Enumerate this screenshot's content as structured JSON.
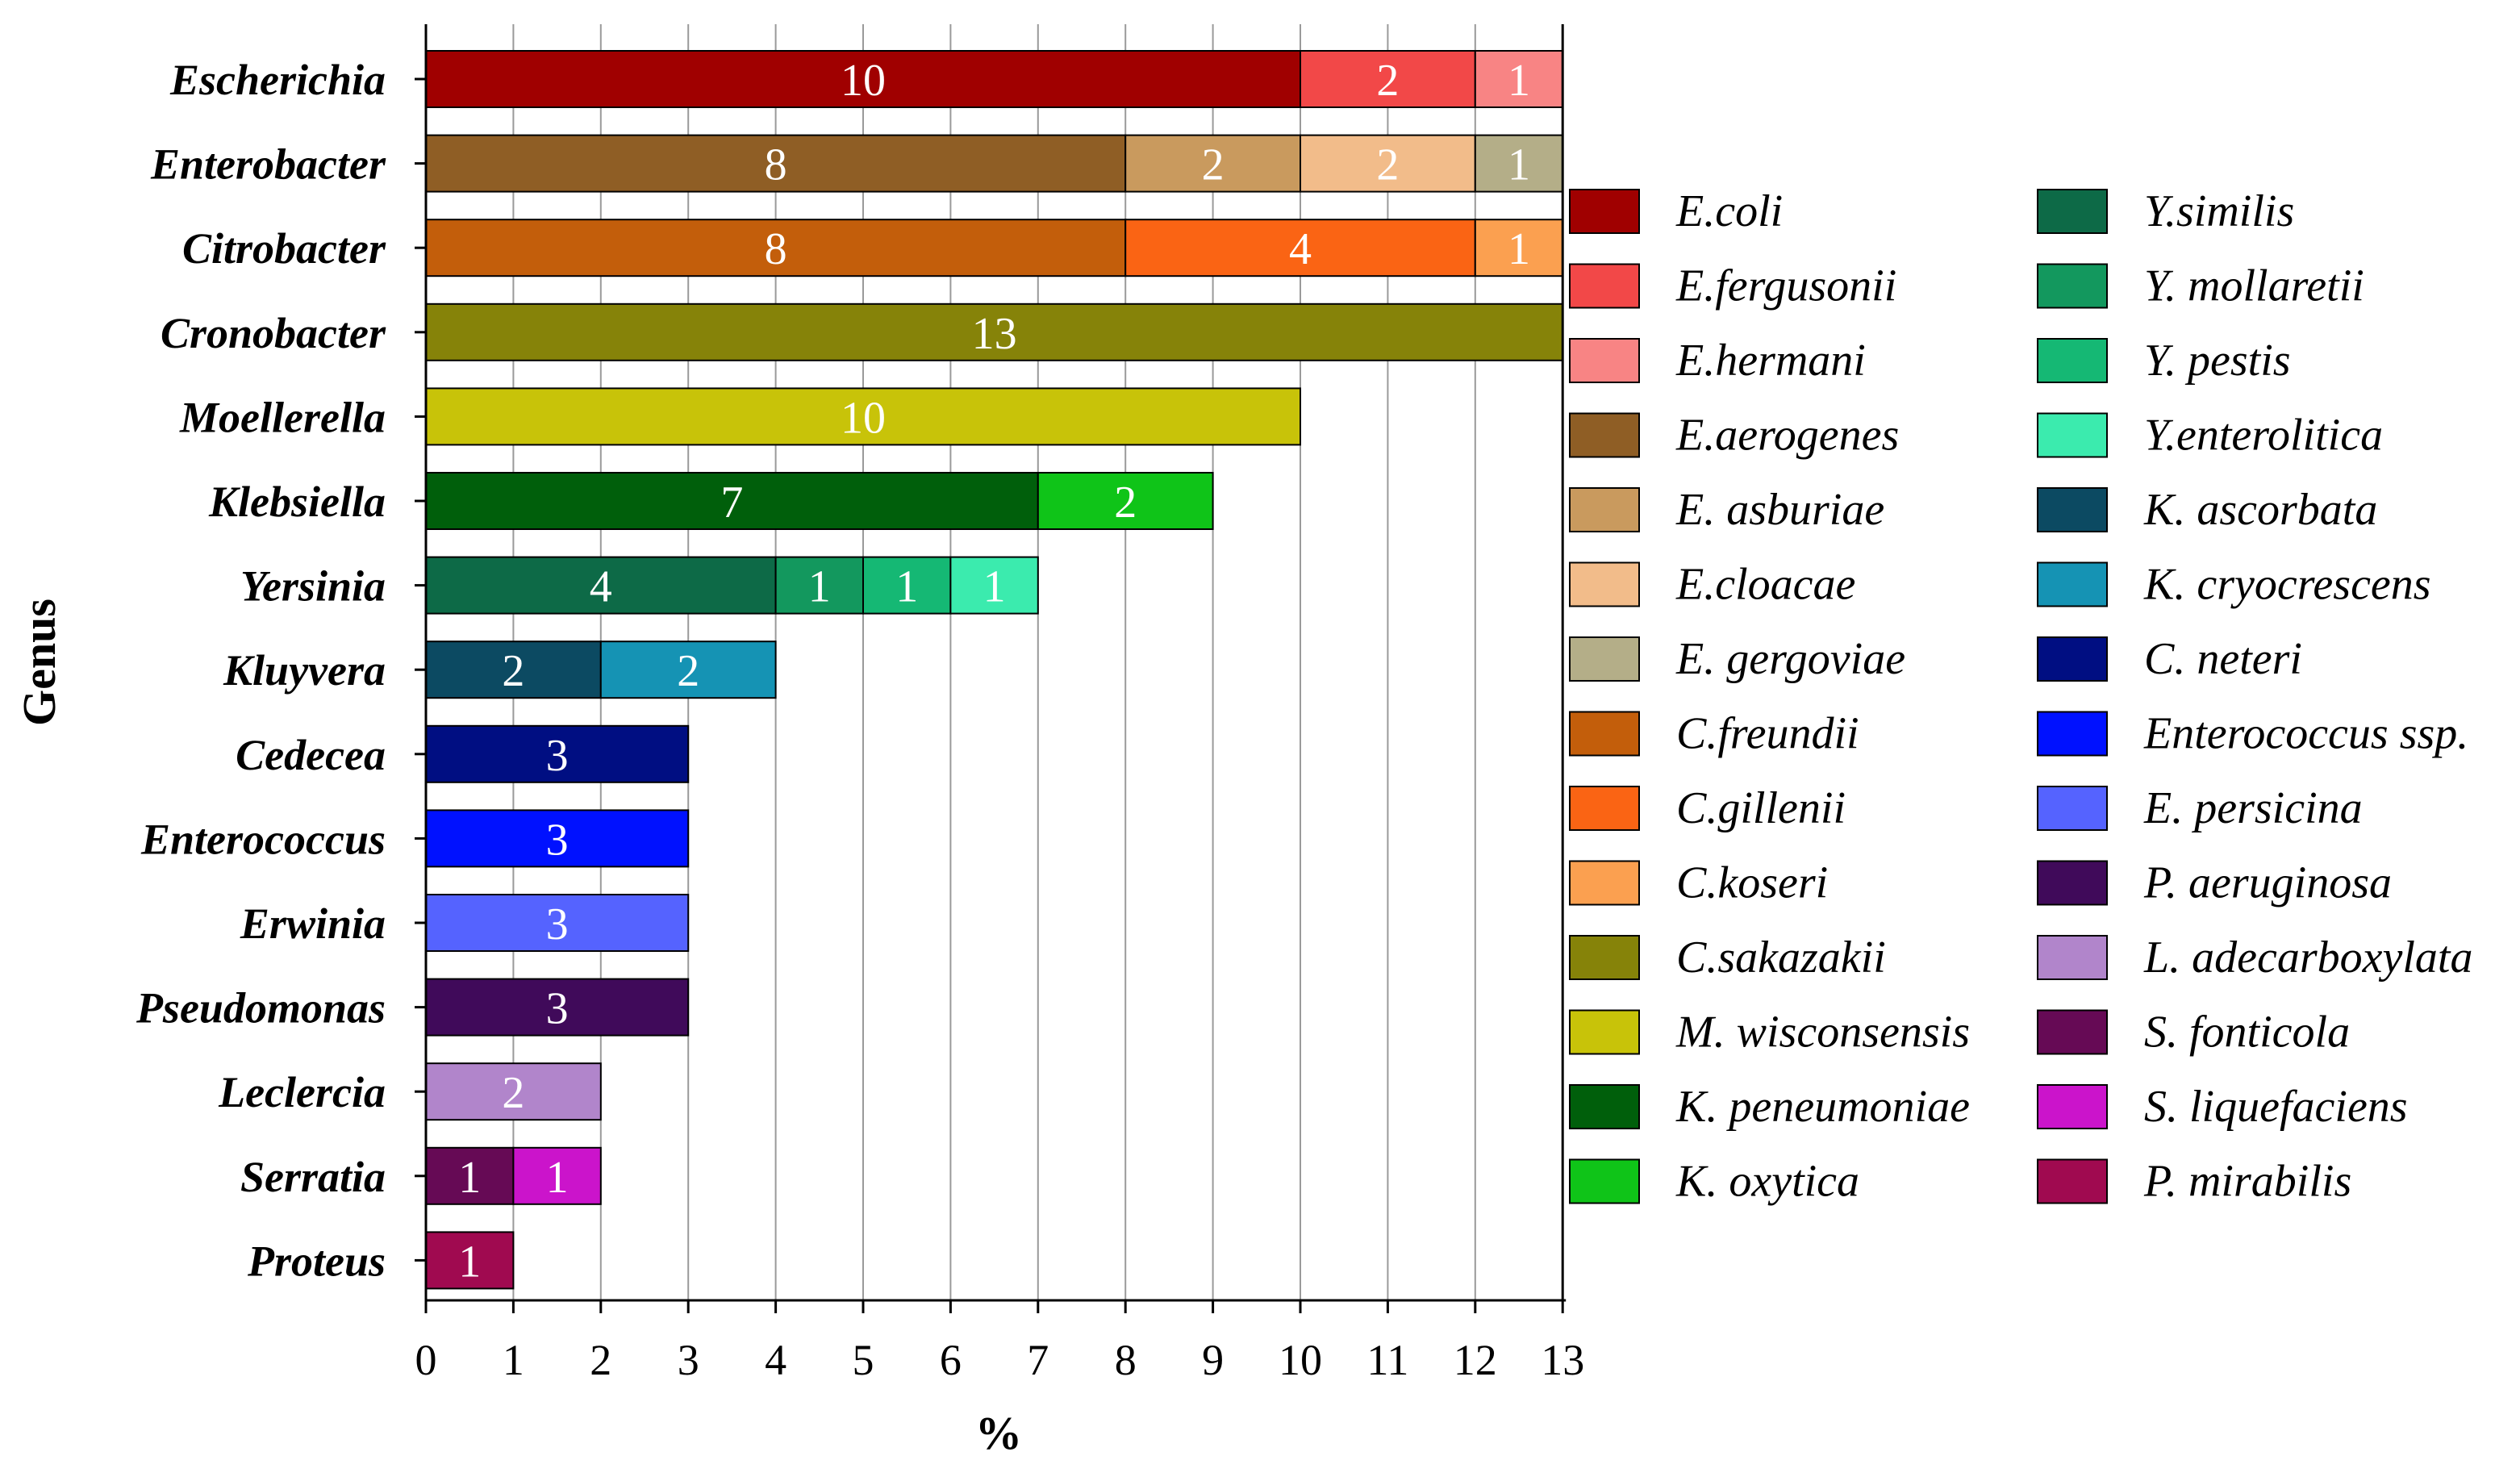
{
  "chart_data": {
    "type": "bar",
    "orientation": "horizontal",
    "stacked": true,
    "xlabel": "%",
    "ylabel": "Genus",
    "xlim": [
      0,
      13
    ],
    "xticks": [
      "0",
      "1",
      "2",
      "3",
      "4",
      "5",
      "6",
      "7",
      "8",
      "9",
      "10",
      "11",
      "12",
      "13"
    ],
    "grid": "vertical",
    "legend_position": "right",
    "legend": [
      {
        "name": "E.coli",
        "color": "#A00000"
      },
      {
        "name": "E.fergusonii",
        "color": "#F24848"
      },
      {
        "name": "E.hermani",
        "color": "#F88484"
      },
      {
        "name": "E.aerogenes",
        "color": "#8F5E25"
      },
      {
        "name": "E. asburiae",
        "color": "#C99A5E"
      },
      {
        "name": "E.cloacae",
        "color": "#F2BC8A"
      },
      {
        "name": "E. gergoviae",
        "color": "#B4AE88"
      },
      {
        "name": "C.freundii",
        "color": "#C35E0B"
      },
      {
        "name": "C.gillenii",
        "color": "#FA6414"
      },
      {
        "name": "C.koseri",
        "color": "#FBA050"
      },
      {
        "name": "C.sakazakii",
        "color": "#868309"
      },
      {
        "name": "M. wisconsensis",
        "color": "#C8C309"
      },
      {
        "name": "K. peneumoniae",
        "color": "#005F0B"
      },
      {
        "name": "K. oxytica",
        "color": "#0FC418"
      },
      {
        "name": "Y.similis",
        "color": "#0D6A47"
      },
      {
        "name": "Y. mollaretii",
        "color": "#13985E"
      },
      {
        "name": "Y. pestis",
        "color": "#15B874"
      },
      {
        "name": "Y.enterolitica",
        "color": "#3BEBAE"
      },
      {
        "name": "K. ascorbata",
        "color": "#0C4A62"
      },
      {
        "name": "K. cryocrescens",
        "color": "#1593B4"
      },
      {
        "name": "C. neteri",
        "color": "#000E82"
      },
      {
        "name": "Enterococcus ssp.",
        "color": "#0011FF"
      },
      {
        "name": "E. persicina",
        "color": "#5563FF"
      },
      {
        "name": "P. aeruginosa",
        "color": "#400A5A"
      },
      {
        "name": "L. adecarboxylata",
        "color": "#B185CB"
      },
      {
        "name": "S. fonticola",
        "color": "#660A55"
      },
      {
        "name": "S. liquefaciens",
        "color": "#CB14CB"
      },
      {
        "name": "P. mirabilis",
        "color": "#A00A50"
      }
    ],
    "bars": [
      {
        "genus": "Escherichia",
        "segments": [
          {
            "species": "E.coli",
            "value": 10,
            "label": "10"
          },
          {
            "species": "E.fergusonii",
            "value": 2,
            "label": "2"
          },
          {
            "species": "E.hermani",
            "value": 1,
            "label": "1"
          }
        ]
      },
      {
        "genus": "Enterobacter",
        "segments": [
          {
            "species": "E.aerogenes",
            "value": 8,
            "label": "8"
          },
          {
            "species": "E. asburiae",
            "value": 2,
            "label": "2"
          },
          {
            "species": "E.cloacae",
            "value": 2,
            "label": "2"
          },
          {
            "species": "E. gergoviae",
            "value": 1,
            "label": "1"
          }
        ]
      },
      {
        "genus": "Citrobacter",
        "segments": [
          {
            "species": "C.freundii",
            "value": 8,
            "label": "8"
          },
          {
            "species": "C.gillenii",
            "value": 4,
            "label": "4"
          },
          {
            "species": "C.koseri",
            "value": 1,
            "label": "1"
          }
        ]
      },
      {
        "genus": "Cronobacter",
        "segments": [
          {
            "species": "C.sakazakii",
            "value": 13,
            "label": "13"
          }
        ]
      },
      {
        "genus": "Moellerella",
        "segments": [
          {
            "species": "M. wisconsensis",
            "value": 10,
            "label": "10"
          }
        ]
      },
      {
        "genus": "Klebsiella",
        "segments": [
          {
            "species": "K. peneumoniae",
            "value": 7,
            "label": "7"
          },
          {
            "species": "K. oxytica",
            "value": 2,
            "label": "2"
          }
        ]
      },
      {
        "genus": "Yersinia",
        "segments": [
          {
            "species": "Y.similis",
            "value": 4,
            "label": "4"
          },
          {
            "species": "Y. mollaretii",
            "value": 1,
            "label": "1"
          },
          {
            "species": "Y. pestis",
            "value": 1,
            "label": "1"
          },
          {
            "species": "Y.enterolitica",
            "value": 1,
            "label": "1"
          }
        ]
      },
      {
        "genus": "Kluyvera",
        "segments": [
          {
            "species": "K. ascorbata",
            "value": 2,
            "label": "2"
          },
          {
            "species": "K. cryocrescens",
            "value": 2,
            "label": "2"
          }
        ]
      },
      {
        "genus": "Cedecea",
        "segments": [
          {
            "species": "C. neteri",
            "value": 3,
            "label": "3"
          }
        ]
      },
      {
        "genus": "Enterococcus",
        "segments": [
          {
            "species": "Enterococcus ssp.",
            "value": 3,
            "label": "3"
          }
        ]
      },
      {
        "genus": "Erwinia",
        "segments": [
          {
            "species": "E. persicina",
            "value": 3,
            "label": "3"
          }
        ]
      },
      {
        "genus": "Pseudomonas",
        "segments": [
          {
            "species": "P. aeruginosa",
            "value": 3,
            "label": "3"
          }
        ]
      },
      {
        "genus": "Leclercia",
        "segments": [
          {
            "species": "L. adecarboxylata",
            "value": 2,
            "label": "2"
          }
        ]
      },
      {
        "genus": "Serratia",
        "segments": [
          {
            "species": "S. fonticola",
            "value": 1,
            "label": "1"
          },
          {
            "species": "S. liquefaciens",
            "value": 1,
            "label": "1"
          }
        ]
      },
      {
        "genus": "Proteus",
        "segments": [
          {
            "species": "P. mirabilis",
            "value": 1,
            "label": "1"
          }
        ]
      }
    ]
  }
}
